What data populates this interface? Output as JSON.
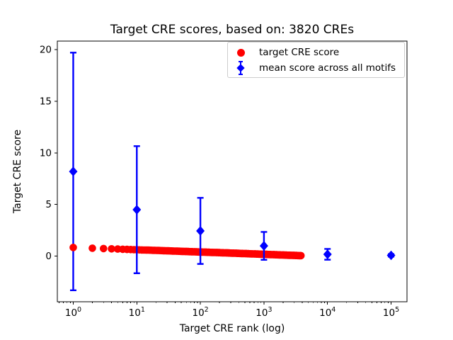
{
  "chart_data": {
    "type": "scatter",
    "title": "Target CRE scores, based on: 3820 CREs",
    "xlabel": "Target CRE rank (log)",
    "ylabel": "Target CRE score",
    "x_scale": "log",
    "xlim": [
      0.562,
      177828
    ],
    "ylim": [
      -4.41,
      20.82
    ],
    "grid": false,
    "n_cres": 3820,
    "x_ticks": [
      {
        "value": 1,
        "base": "10",
        "exponent": "0"
      },
      {
        "value": 10,
        "base": "10",
        "exponent": "1"
      },
      {
        "value": 100,
        "base": "10",
        "exponent": "2"
      },
      {
        "value": 1000,
        "base": "10",
        "exponent": "3"
      },
      {
        "value": 10000,
        "base": "10",
        "exponent": "4"
      },
      {
        "value": 100000,
        "base": "10",
        "exponent": "5"
      }
    ],
    "y_ticks": [
      {
        "value": 0,
        "label": "0"
      },
      {
        "value": 5,
        "label": "5"
      },
      {
        "value": 10,
        "label": "10"
      },
      {
        "value": 15,
        "label": "15"
      },
      {
        "value": 20,
        "label": "20"
      }
    ],
    "legend": {
      "position": "upper right",
      "entries": [
        {
          "label": "target CRE score",
          "marker": "circle",
          "color": "#ff0000"
        },
        {
          "label": "mean score across all motifs",
          "marker": "diamond-errorbar",
          "color": "#0000ff"
        }
      ]
    },
    "series": [
      {
        "name": "target CRE score",
        "marker": "circle",
        "color": "#ff0000",
        "n_points": 3820,
        "trend": "score ~ 0.84 - 0.22*log10(rank), monotonically decreasing",
        "anchor_points": [
          {
            "rank": 1,
            "score": 0.84
          },
          {
            "rank": 2,
            "score": 0.77
          },
          {
            "rank": 3,
            "score": 0.74
          },
          {
            "rank": 5,
            "score": 0.69
          },
          {
            "rank": 10,
            "score": 0.62
          },
          {
            "rank": 20,
            "score": 0.56
          },
          {
            "rank": 50,
            "score": 0.47
          },
          {
            "rank": 100,
            "score": 0.4
          },
          {
            "rank": 200,
            "score": 0.34
          },
          {
            "rank": 500,
            "score": 0.25
          },
          {
            "rank": 1000,
            "score": 0.18
          },
          {
            "rank": 2000,
            "score": 0.11
          },
          {
            "rank": 3820,
            "score": 0.05
          }
        ]
      },
      {
        "name": "mean score across all motifs",
        "marker": "diamond",
        "color": "#0000ff",
        "error_bars": true,
        "points": [
          {
            "x": 1,
            "y": 8.2,
            "err": 11.5
          },
          {
            "x": 10,
            "y": 4.5,
            "err": 6.15
          },
          {
            "x": 100,
            "y": 2.45,
            "err": 3.2
          },
          {
            "x": 1000,
            "y": 1.0,
            "err": 1.35
          },
          {
            "x": 10000,
            "y": 0.18,
            "err": 0.52
          },
          {
            "x": 100000,
            "y": 0.08,
            "err": 0.12
          }
        ]
      }
    ],
    "colors": {
      "target_series": "#ff0000",
      "mean_series": "#0000ff",
      "axes": "#000000",
      "background": "#ffffff",
      "legend_border": "#cccccc"
    }
  }
}
